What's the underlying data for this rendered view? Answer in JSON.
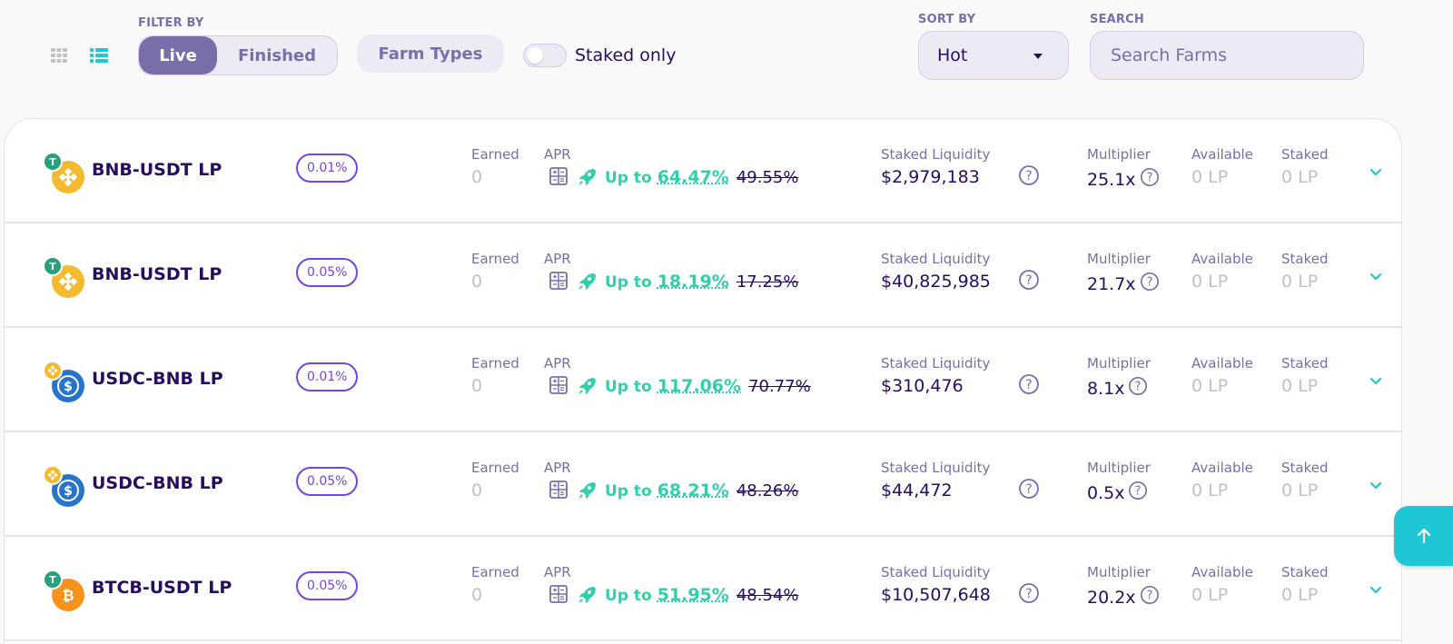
{
  "filter": {
    "label": "FILTER BY",
    "tabs": [
      "Live",
      "Finished"
    ],
    "farm_types": "Farm Types",
    "staked_only": "Staked only"
  },
  "sort": {
    "label": "SORT BY",
    "value": "Hot"
  },
  "search": {
    "label": "SEARCH",
    "placeholder": "Search Farms"
  },
  "labels": {
    "earned": "Earned",
    "apr": "APR",
    "up_to": "Up to",
    "liquidity": "Staked Liquidity",
    "multiplier": "Multiplier",
    "available": "Available",
    "staked": "Staked"
  },
  "colors": {
    "accent": "#7a6eaa",
    "primary_text": "#280d5f",
    "apr_green": "#31d0aa",
    "fee_purple": "#7645d9",
    "scroll_button": "#1fc7d4"
  },
  "rows": [
    {
      "name": "BNB-USDT LP",
      "fee": "0.01%",
      "earned": "0",
      "apr_boost": "64.47%",
      "apr_base": "49.55%",
      "liquidity": "$2,979,183",
      "multiplier": "25.1x",
      "available": "0 LP",
      "staked": "0 LP",
      "token_big": "bnb-icon",
      "token_small": "usdt-icon"
    },
    {
      "name": "BNB-USDT LP",
      "fee": "0.05%",
      "earned": "0",
      "apr_boost": "18.19%",
      "apr_base": "17.25%",
      "liquidity": "$40,825,985",
      "multiplier": "21.7x",
      "available": "0 LP",
      "staked": "0 LP",
      "token_big": "bnb-icon",
      "token_small": "usdt-icon"
    },
    {
      "name": "USDC-BNB LP",
      "fee": "0.01%",
      "earned": "0",
      "apr_boost": "117.06%",
      "apr_base": "70.77%",
      "liquidity": "$310,476",
      "multiplier": "8.1x",
      "available": "0 LP",
      "staked": "0 LP",
      "token_big": "usdc-icon",
      "token_small": "bnb-icon"
    },
    {
      "name": "USDC-BNB LP",
      "fee": "0.05%",
      "earned": "0",
      "apr_boost": "68.21%",
      "apr_base": "48.26%",
      "liquidity": "$44,472",
      "multiplier": "0.5x",
      "available": "0 LP",
      "staked": "0 LP",
      "token_big": "usdc-icon",
      "token_small": "bnb-icon"
    },
    {
      "name": "BTCB-USDT LP",
      "fee": "0.05%",
      "earned": "0",
      "apr_boost": "51.95%",
      "apr_base": "48.54%",
      "liquidity": "$10,507,648",
      "multiplier": "20.2x",
      "available": "0 LP",
      "staked": "0 LP",
      "token_big": "btcb-icon",
      "token_small": "usdt-icon"
    }
  ]
}
